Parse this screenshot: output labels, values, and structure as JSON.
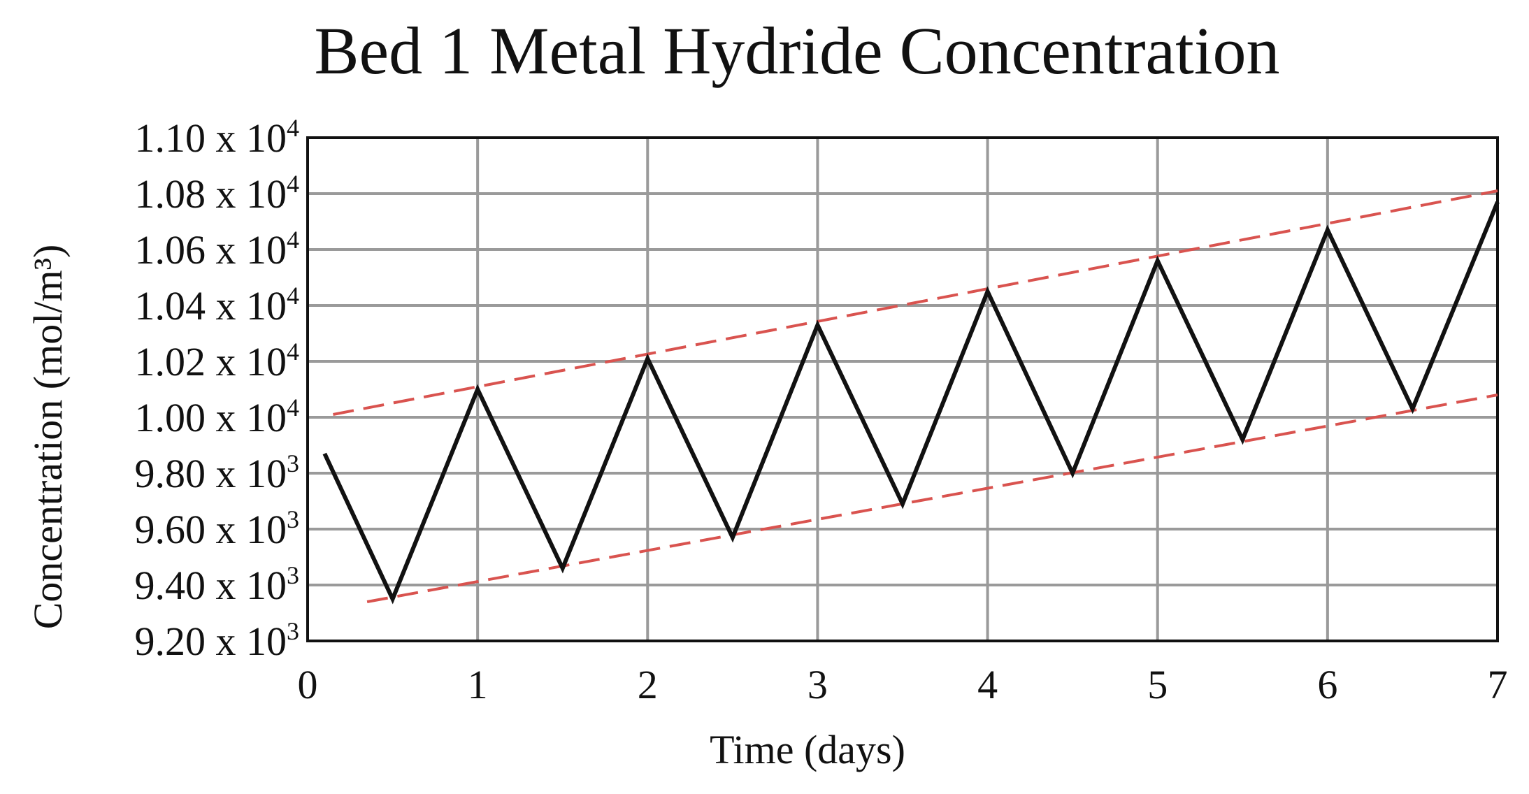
{
  "chart_data": {
    "type": "line",
    "title": "Bed 1 Metal Hydride Concentration",
    "xlabel": "Time (days)",
    "ylabel": "Concentration (mol/m³)",
    "xlim": [
      0,
      7
    ],
    "ylim": [
      9200,
      11000
    ],
    "x_ticks": [
      0,
      1,
      2,
      3,
      4,
      5,
      6,
      7
    ],
    "x_tick_labels": [
      "0",
      "1",
      "2",
      "3",
      "4",
      "5",
      "6",
      "7"
    ],
    "y_ticks": [
      9200,
      9400,
      9600,
      9800,
      10000,
      10200,
      10400,
      10600,
      10800,
      11000
    ],
    "y_tick_labels": [
      {
        "mantissa": "9.20 x 10",
        "exp": "3"
      },
      {
        "mantissa": "9.40 x 10",
        "exp": "3"
      },
      {
        "mantissa": "9.60 x 10",
        "exp": "3"
      },
      {
        "mantissa": "9.80 x 10",
        "exp": "3"
      },
      {
        "mantissa": "1.00 x 10",
        "exp": "4"
      },
      {
        "mantissa": "1.02 x 10",
        "exp": "4"
      },
      {
        "mantissa": "1.04 x 10",
        "exp": "4"
      },
      {
        "mantissa": "1.06 x 10",
        "exp": "4"
      },
      {
        "mantissa": "1.08 x 10",
        "exp": "4"
      },
      {
        "mantissa": "1.10 x 10",
        "exp": "4"
      }
    ],
    "grid": true,
    "series": [
      {
        "x": [
          0.1,
          0.5,
          1.0,
          1.5,
          2.0,
          2.5,
          3.0,
          3.5,
          4.0,
          4.5,
          5.0,
          5.5,
          6.0,
          6.5,
          7.0
        ],
        "y": [
          9870,
          9350,
          10100,
          9460,
          10210,
          9570,
          10330,
          9690,
          10450,
          9800,
          10560,
          9920,
          10670,
          10030,
          10770
        ],
        "color": "#111111"
      }
    ],
    "trend_lines": [
      {
        "x": [
          0.15,
          7.0
        ],
        "y": [
          10010,
          10810
        ],
        "color": "#d9534f",
        "style": "dashed"
      },
      {
        "x": [
          0.35,
          7.0
        ],
        "y": [
          9340,
          10080
        ],
        "color": "#d9534f",
        "style": "dashed"
      }
    ]
  }
}
